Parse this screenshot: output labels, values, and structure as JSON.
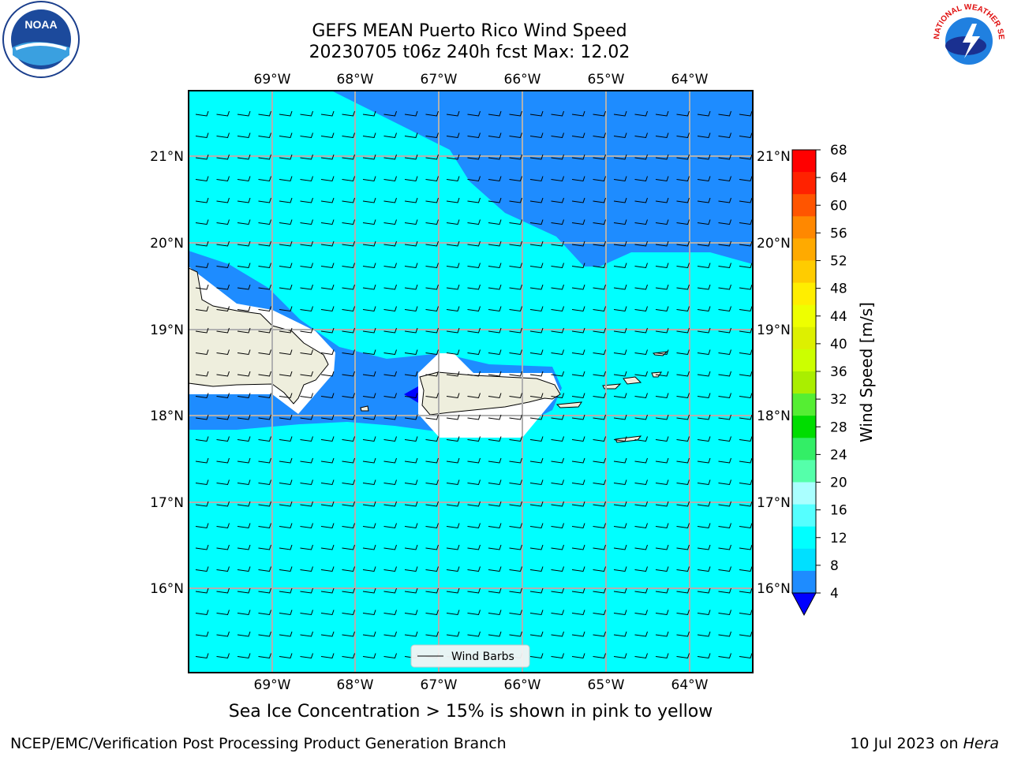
{
  "title": {
    "line1": "GEFS MEAN Puerto Rico Wind Speed",
    "line2": "20230705 t06z 240h fcst   Max: 12.02"
  },
  "map": {
    "lon_labels": [
      "69°W",
      "68°W",
      "67°W",
      "66°W",
      "65°W",
      "64°W"
    ],
    "lat_labels": [
      "21°N",
      "20°N",
      "19°N",
      "18°N",
      "17°N",
      "16°N"
    ],
    "legend_label": "Wind Barbs",
    "colors": {
      "ocean_low": "#00ffff",
      "ocean_mid": "#1e8cff",
      "ocean_deep": "#0000ff",
      "land": "#eeeedd",
      "grid": "#b0b0b0"
    }
  },
  "colorbar": {
    "label": "Wind Speed [m/s]",
    "ticks": [
      "68",
      "64",
      "60",
      "56",
      "52",
      "48",
      "44",
      "40",
      "36",
      "32",
      "28",
      "24",
      "20",
      "16",
      "12",
      "8",
      "4"
    ],
    "colors": [
      "#ff0000",
      "#ff2200",
      "#ff5500",
      "#ff8800",
      "#ffaa00",
      "#ffcc00",
      "#ffee00",
      "#eeff00",
      "#ddf000",
      "#ccff00",
      "#aaee00",
      "#55ee33",
      "#00dd00",
      "#33ee66",
      "#55ffaa",
      "#aaffff",
      "#55ffff",
      "#00ffff",
      "#00e0ff",
      "#1e8cff",
      "#0000ff"
    ]
  },
  "subtitle": "Sea Ice Concentration > 15% is shown in pink to yellow",
  "footer": {
    "left": "NCEP/EMC/Verification Post Processing Product Generation Branch",
    "right_prefix": "10 Jul 2023 on ",
    "right_host": "Hera"
  },
  "logos": {
    "noaa_text": "NOAA",
    "nws_text": "NATIONAL WEATHER SERVICE"
  }
}
